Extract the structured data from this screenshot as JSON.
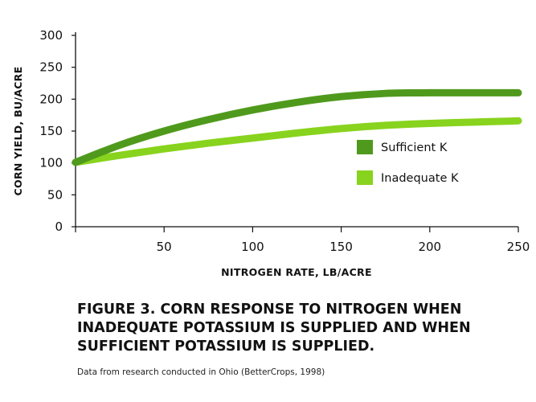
{
  "chart_data": {
    "type": "line",
    "xlabel": "NITROGEN RATE, LB/ACRE",
    "ylabel": "CORN YIELD, BU/ACRE",
    "xlim": [
      0,
      250
    ],
    "ylim": [
      0,
      300
    ],
    "x_ticks": [
      50,
      100,
      150,
      200,
      250
    ],
    "y_ticks": [
      0,
      50,
      100,
      150,
      200,
      250,
      300
    ],
    "grid": false,
    "legend_position": "right-center",
    "series": [
      {
        "name": "Sufficient K",
        "color": "#4f9a1c",
        "x": [
          0,
          25,
          50,
          75,
          100,
          125,
          150,
          175,
          200,
          225,
          250
        ],
        "y": [
          101,
          128,
          150,
          168,
          183,
          195,
          204,
          209,
          210,
          210,
          210
        ]
      },
      {
        "name": "Inadequate K",
        "color": "#88d31d",
        "x": [
          0,
          25,
          50,
          75,
          100,
          125,
          150,
          175,
          200,
          225,
          250
        ],
        "y": [
          101,
          112,
          122,
          131,
          139,
          147,
          154,
          159,
          162,
          164,
          166
        ]
      }
    ]
  },
  "caption": {
    "title_lines": [
      "FIGURE 3. CORN RESPONSE TO NITROGEN WHEN",
      "INADEQUATE POTASSIUM IS SUPPLIED AND WHEN",
      "SUFFICIENT POTASSIUM IS SUPPLIED."
    ],
    "source": "Data from research conducted in Ohio (BetterCrops, 1998)"
  }
}
